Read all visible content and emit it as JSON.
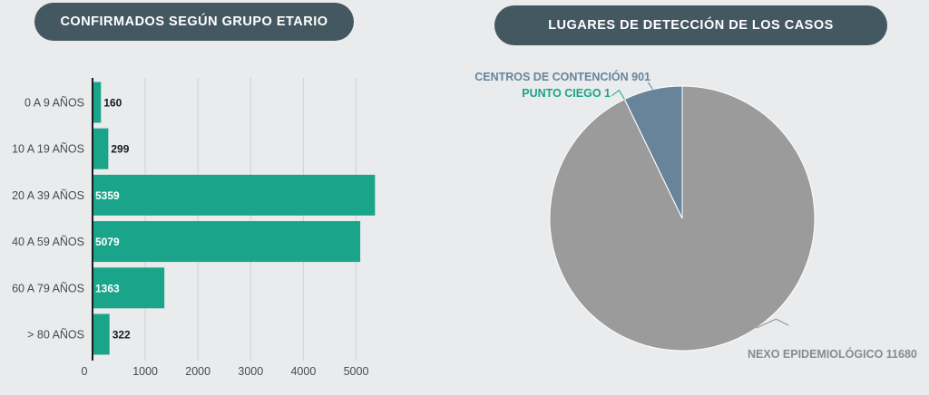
{
  "left_title": "CONFIRMADOS SEGÚN GRUPO ETARIO",
  "right_title": "LUGARES DE DETECCIÓN DE LOS CASOS",
  "colors": {
    "bar": "#1aa58a",
    "pill": "#445862",
    "pie_nexo": "#9b9b9b",
    "pie_centros": "#67849a",
    "pie_punto": "#1aa58a",
    "label_centros": "#67849a",
    "label_punto": "#1aa58a",
    "label_nexo": "#8a8a8a"
  },
  "chart_data": [
    {
      "type": "bar",
      "orientation": "horizontal",
      "title": "CONFIRMADOS SEGÚN GRUPO ETARIO",
      "categories": [
        "0 A 9 AÑOS",
        "10 A 19 AÑOS",
        "20 A 39 AÑOS",
        "40 A 59 AÑOS",
        "60 A 79 AÑOS",
        "> 80 AÑOS"
      ],
      "values": [
        160,
        299,
        5359,
        5079,
        1363,
        322
      ],
      "xlim": [
        0,
        5400
      ],
      "xticks": [
        0,
        1000,
        2000,
        3000,
        4000,
        5000
      ],
      "grid": true
    },
    {
      "type": "pie",
      "title": "LUGARES DE DETECCIÓN DE LOS CASOS",
      "slices": [
        {
          "label": "NEXO EPIDEMIOLÓGICO",
          "value": 11680
        },
        {
          "label": "PUNTO CIEGO",
          "value": 1
        },
        {
          "label": "CENTROS DE CONTENCIÓN",
          "value": 901
        }
      ]
    }
  ]
}
